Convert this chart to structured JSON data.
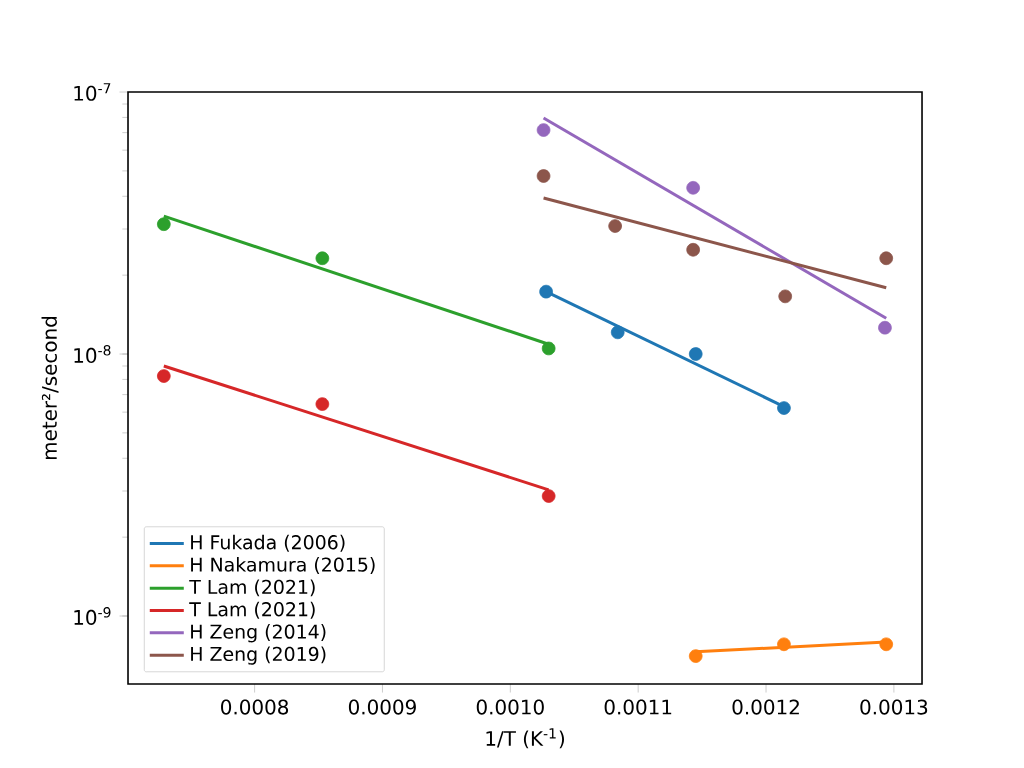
{
  "chart_data": {
    "type": "scatter",
    "xlabel": "1/T (K$^{-1}$)",
    "ylabel": "meter²/second",
    "log": "y",
    "grid": false,
    "legend": "bottom left",
    "xlim": [
      0.000701,
      0.001322
    ],
    "ylim": [
      5.5e-10,
      1e-07
    ],
    "xticks": [
      0.0008,
      0.0009,
      {
        "value": 0.001,
        "label": "0.0010"
      },
      0.0011,
      0.0012,
      0.0013
    ],
    "yticks": [
      {
        "value": 1e-09,
        "label": "10$^{-9}$"
      },
      {
        "value": 1e-08,
        "label": "10$^{-8}$"
      },
      {
        "value": 1e-07,
        "label": "10$^{-7}$"
      }
    ],
    "series": [
      {
        "type": "line",
        "marker": "none",
        "name": "H Fukada (2006)",
        "color": "#1f77b4",
        "x": [
          0.001028,
          0.001214
        ],
        "values": [
          1.73e-08,
          6.3e-09
        ]
      },
      {
        "type": "line",
        "marker": "none",
        "name": "H Nakamura (2015)",
        "color": "#ff7f0e",
        "x": [
          0.001145,
          0.001294
        ],
        "values": [
          7.3e-10,
          7.96e-10
        ]
      },
      {
        "type": "line",
        "marker": "none",
        "name": "T Lam (2021)",
        "color": "#2ca02c",
        "x": [
          0.000729,
          0.00103
        ],
        "values": [
          3.36e-08,
          1.09e-08
        ]
      },
      {
        "type": "line",
        "marker": "none",
        "name": "T Lam (2021)",
        "color": "#d62728",
        "x": [
          0.000729,
          0.00103
        ],
        "values": [
          9e-09,
          3.03e-09
        ]
      },
      {
        "type": "line",
        "marker": "none",
        "name": "H Zeng (2014)",
        "color": "#9467bd",
        "x": [
          0.001026,
          0.001294
        ],
        "values": [
          7.96e-08,
          1.37e-08
        ]
      },
      {
        "type": "line",
        "marker": "none",
        "name": "H Zeng (2019)",
        "color": "#8c564b",
        "x": [
          0.001026,
          0.001294
        ],
        "values": [
          3.94e-08,
          1.79e-08
        ]
      },
      {
        "marker": "circle",
        "color": "#1f77b4",
        "x": [
          0.001028,
          0.001084,
          0.001145,
          0.001214
        ],
        "values": [
          1.73e-08,
          1.21e-08,
          1e-08,
          6.22e-09
        ]
      },
      {
        "marker": "circle",
        "color": "#ff7f0e",
        "x": [
          0.001145,
          0.001214,
          0.001294
        ],
        "values": [
          7.03e-10,
          7.8e-10,
          7.8e-10
        ]
      },
      {
        "marker": "circle",
        "color": "#2ca02c",
        "x": [
          0.000729,
          0.000853,
          0.00103
        ],
        "values": [
          3.13e-08,
          2.32e-08,
          1.05e-08
        ]
      },
      {
        "marker": "circle",
        "color": "#d62728",
        "x": [
          0.000729,
          0.000853,
          0.00103
        ],
        "values": [
          8.24e-09,
          6.44e-09,
          2.87e-09
        ]
      },
      {
        "marker": "circle",
        "color": "#9467bd",
        "x": [
          0.001026,
          0.001143,
          0.001293
        ],
        "values": [
          7.16e-08,
          4.31e-08,
          1.26e-08
        ]
      },
      {
        "marker": "circle",
        "color": "#8c564b",
        "x": [
          0.001026,
          0.001082,
          0.001143,
          0.001215,
          0.001294
        ],
        "values": [
          4.78e-08,
          3.08e-08,
          2.5e-08,
          1.66e-08,
          2.32e-08
        ]
      }
    ]
  }
}
